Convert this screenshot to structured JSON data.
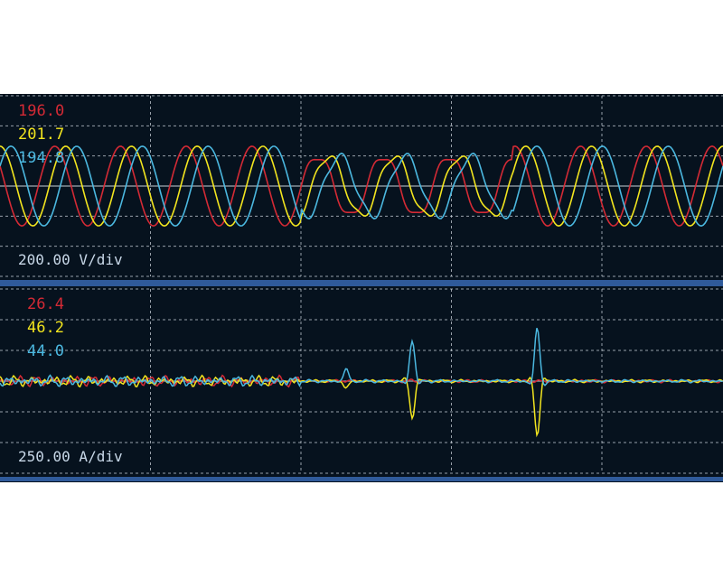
{
  "chart_data": [
    {
      "type": "line",
      "panel": "voltage",
      "scale_label": "200.00 V/div",
      "units_per_div": 200,
      "x_divisions": 4.8,
      "y_divisions": 6,
      "grid": true,
      "series": [
        {
          "color": "#d42a35",
          "readout": "196.0",
          "amplitude": 265,
          "phase_deg": -60,
          "cycles": 11
        },
        {
          "color": "#f2e51e",
          "readout": "201.7",
          "amplitude": 265,
          "phase_deg": 0,
          "cycles": 11
        },
        {
          "color": "#4bb8e0",
          "readout": "194.8",
          "amplitude": 265,
          "phase_deg": 60,
          "cycles": 11
        }
      ],
      "sag_region_div": [
        2.0,
        3.4
      ],
      "sag_amplitude": 200
    },
    {
      "type": "line",
      "panel": "current",
      "scale_label": "250.00 A/div",
      "units_per_div": 250,
      "x_divisions": 4.8,
      "y_divisions": 6,
      "grid": true,
      "series": [
        {
          "color": "#d42a35",
          "readout": "26.4"
        },
        {
          "color": "#f2e51e",
          "readout": "46.2"
        },
        {
          "color": "#4bb8e0",
          "readout": "44.0"
        }
      ],
      "transients": [
        {
          "time_div": 2.3,
          "blue": 100,
          "yellow": -60
        },
        {
          "time_div": 2.74,
          "blue": 330,
          "yellow": -300
        },
        {
          "time_div": 3.57,
          "blue": 430,
          "yellow": -450
        }
      ]
    }
  ],
  "colors": {
    "background": "#06121e",
    "separator": "#2f5a9a",
    "grid": "#c8d0d8"
  }
}
